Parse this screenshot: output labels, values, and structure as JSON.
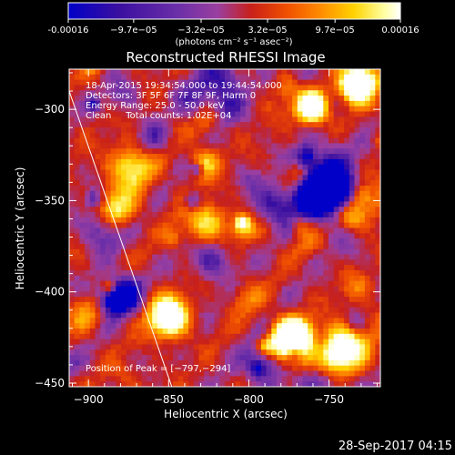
{
  "chart_data": {
    "type": "heatmap",
    "title": "Reconstructed RHESSI Image",
    "xlabel": "Heliocentric X (arcsec)",
    "ylabel": "Heliocentric Y (arcsec)",
    "xlim": [
      -912,
      -718
    ],
    "ylim": [
      -452,
      -278
    ],
    "x_ticks": [
      -900,
      -850,
      -800,
      -750
    ],
    "y_ticks": [
      -300,
      -350,
      -400,
      -450
    ],
    "x_tick_labels": [
      "−900",
      "−850",
      "−800",
      "−750"
    ],
    "y_tick_labels": [
      "−300",
      "−350",
      "−400",
      "−450"
    ],
    "colorbar": {
      "tick_labels": [
        "-0.00016",
        "−9.7e−05",
        "−3.2e−05",
        "3.2e−05",
        "9.7e−05",
        "0.00016"
      ],
      "tick_values": [
        -0.00016,
        -9.7e-05,
        -3.2e-05,
        3.2e-05,
        9.7e-05,
        0.00016
      ],
      "range": [
        -0.00016,
        0.00016
      ],
      "units_label": "(photons cm⁻² s⁻¹ asec⁻²)"
    },
    "annotations": [
      "18-Apr-2015 19:34:54.000 to 19:44:54.000",
      "Detectors: 3F 5F 6F 7F 8F 9F, Harm 0",
      "Energy Range: 25.0 - 50.0 keV",
      "Clean     Total counts: 1.02E+04",
      "Position of Peak = [−797,−294]"
    ],
    "peak_position": [
      -797,
      -294
    ],
    "limb_line": {
      "from": [
        -912,
        -290
      ],
      "to": [
        -848,
        -452
      ]
    },
    "grid": false,
    "colors": {
      "scale": [
        "#0000c8",
        "#3a0fa0",
        "#6b2fa8",
        "#9a3fa0",
        "#c8201a",
        "#f05000",
        "#ff8c00",
        "#ffd200",
        "#ffffa0",
        "#ffffff"
      ]
    }
  },
  "footer": {
    "timestamp": "28-Sep-2017 04:15"
  }
}
